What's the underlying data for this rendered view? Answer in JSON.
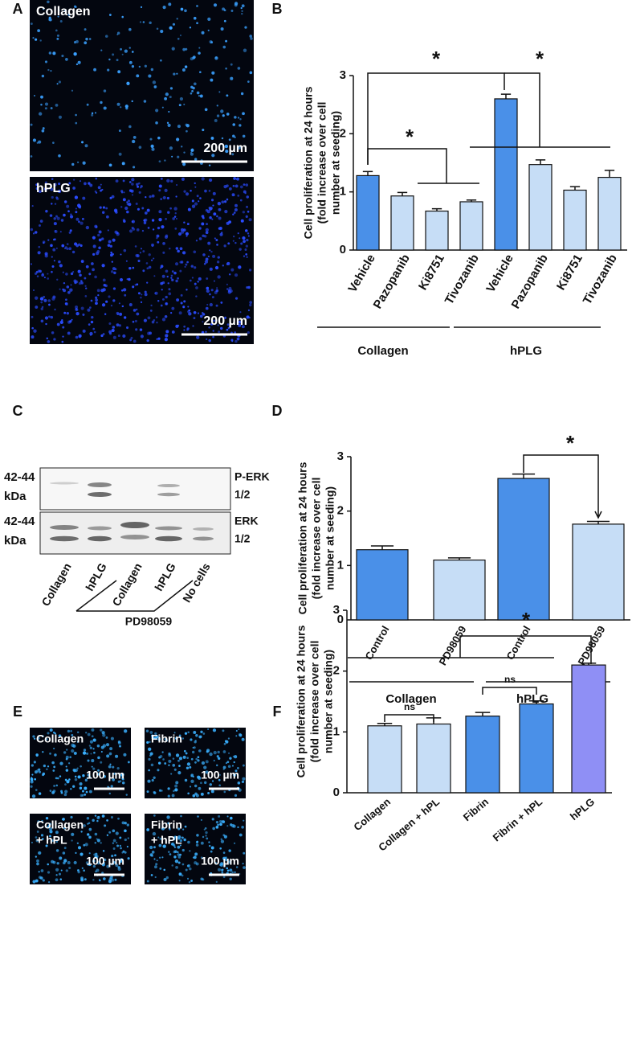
{
  "panel_labels": [
    "A",
    "B",
    "C",
    "D",
    "E",
    "F"
  ],
  "images": {
    "A": [
      {
        "label": [
          "Collagen"
        ],
        "scale": "200 µm"
      },
      {
        "label": [
          "hPLG"
        ],
        "scale": "200 µm"
      }
    ],
    "E": [
      {
        "label": [
          "Collagen"
        ],
        "scale": "100 µm"
      },
      {
        "label": [
          "Fibrin"
        ],
        "scale": "100 µm"
      },
      {
        "label": [
          "Collagen",
          "+ hPL"
        ],
        "scale": "100 µm"
      },
      {
        "label": [
          "Fibrin",
          "+ hPL"
        ],
        "scale": "100 µm"
      }
    ]
  },
  "blot": {
    "left_labels": [
      [
        "42-44",
        "kDa"
      ],
      [
        "42-44",
        "kDa"
      ]
    ],
    "right_labels": [
      [
        "P-ERK",
        "1/2"
      ],
      [
        "ERK",
        "1/2"
      ]
    ],
    "lanes": [
      "Collagen",
      "hPLG",
      "Collagen",
      "hPLG",
      "No cells"
    ],
    "treatment": "PD98059"
  },
  "chart_data": [
    {
      "type": "bar",
      "ylabel": [
        "Cell proliferation at 24 hours",
        "(fold increase over cell",
        "number at seeding)"
      ],
      "categories": [
        "Vehicle",
        "Pazopanib",
        "Ki8751",
        "Tivozanib",
        "Vehicle",
        "Pazopanib",
        "Ki8751",
        "Tivozanib"
      ],
      "values": [
        1.28,
        0.93,
        0.67,
        0.83,
        2.6,
        1.47,
        1.03,
        1.25
      ],
      "errors": [
        0.07,
        0.06,
        0.04,
        0.03,
        0.08,
        0.08,
        0.06,
        0.12
      ],
      "colors": [
        "#4a90e8",
        "#c6ddf6",
        "#c6ddf6",
        "#c6ddf6",
        "#4a90e8",
        "#c6ddf6",
        "#c6ddf6",
        "#c6ddf6"
      ],
      "groups": [
        "Collagen",
        "hPLG"
      ],
      "annotations": [
        "*",
        "*",
        "*"
      ],
      "ylim": [
        0,
        3
      ],
      "yticks": [
        0,
        1,
        2,
        3
      ]
    },
    {
      "type": "bar",
      "ylabel": [
        "Cell proliferation at 24 hours",
        "(fold increase over cell",
        "number at seeding)"
      ],
      "categories": [
        "Control",
        "PD98059",
        "Control",
        "PD98059"
      ],
      "values": [
        1.29,
        1.1,
        2.6,
        1.76
      ],
      "errors": [
        0.07,
        0.04,
        0.08,
        0.05
      ],
      "colors": [
        "#4a90e8",
        "#c6ddf6",
        "#4a90e8",
        "#c6ddf6"
      ],
      "groups": [
        "Collagen",
        "hPLG"
      ],
      "annotations": [
        "*"
      ],
      "ylim": [
        0,
        3
      ],
      "yticks": [
        0,
        1,
        2,
        3
      ]
    },
    {
      "type": "bar",
      "ylabel": [
        "Cell proliferation at 24 hours",
        "(fold increase over cell",
        "number at seeding)"
      ],
      "categories": [
        "Collagen",
        "Collagen + hPL",
        "Fibrin",
        "Fibrin + hPL",
        "hPLG"
      ],
      "values": [
        1.1,
        1.13,
        1.26,
        1.46,
        2.1
      ],
      "errors": [
        0.04,
        0.1,
        0.06,
        0.05,
        0.03
      ],
      "colors": [
        "#c6ddf6",
        "#c6ddf6",
        "#4a90e8",
        "#4a90e8",
        "#8f8ff5"
      ],
      "annotations": [
        "ns",
        "ns",
        "*"
      ],
      "ylim": [
        0,
        3
      ],
      "yticks": [
        0,
        1,
        2,
        3
      ]
    }
  ]
}
